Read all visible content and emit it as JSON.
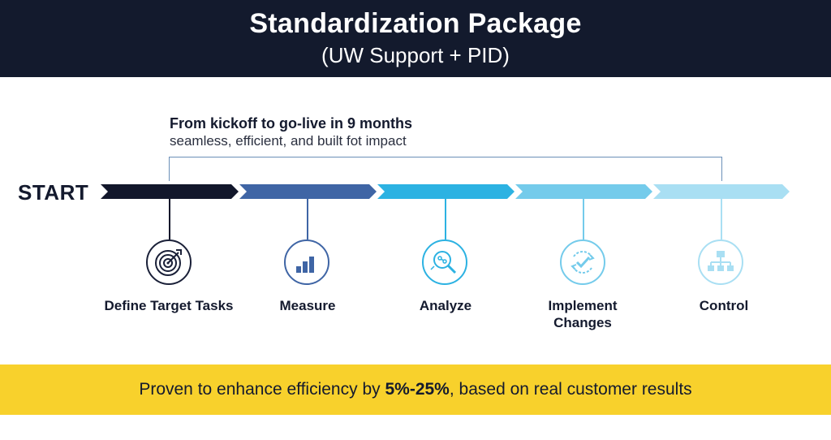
{
  "header": {
    "title": "Standardization Package",
    "subtitle": "(UW Support + PID)"
  },
  "tagline": {
    "main": "From kickoff to go-live in 9 months",
    "sub": "seamless, efficient, and built fot impact"
  },
  "timeline": {
    "start_label": "START",
    "steps": [
      {
        "label": "Define Target Tasks",
        "icon": "target-icon",
        "color": "#12172b"
      },
      {
        "label": "Measure",
        "icon": "bar-chart-icon",
        "color": "#3f65a5"
      },
      {
        "label": "Analyze",
        "icon": "magnifier-analysis-icon",
        "color": "#2cb2e2"
      },
      {
        "label": "Implement Changes",
        "icon": "cycle-check-icon",
        "color": "#74cbeb"
      },
      {
        "label": "Control",
        "icon": "hierarchy-icon",
        "color": "#a9dff3"
      }
    ]
  },
  "footer": {
    "text_before": "Proven to enhance efficiency by ",
    "highlight": "5%-25%",
    "text_after": ", based on real customer results",
    "background": "#f8d12c"
  },
  "colors": {
    "header_bg": "#131a2d",
    "text_dark": "#141a2e",
    "bracket_line": "#6b8fb8"
  }
}
